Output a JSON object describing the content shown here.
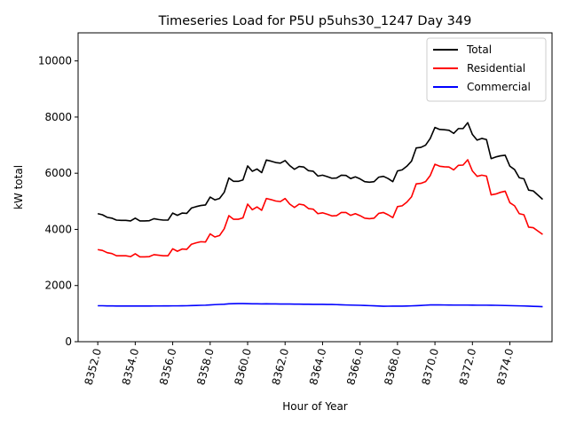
{
  "chart_data": {
    "type": "line",
    "title": "Timeseries Load for P5U p5uhs30_1247  Day 349",
    "xlabel": "Hour of Year",
    "ylabel": "kW total",
    "xlim": [
      8350.95,
      8376.25
    ],
    "ylim": [
      0,
      11000
    ],
    "xticks": [
      8352,
      8354,
      8356,
      8358,
      8360,
      8362,
      8364,
      8366,
      8368,
      8370,
      8372,
      8374
    ],
    "xtick_labels": [
      "8352.0",
      "8354.0",
      "8356.0",
      "8358.0",
      "8360.0",
      "8362.0",
      "8364.0",
      "8366.0",
      "8368.0",
      "8370.0",
      "8372.0",
      "8374.0"
    ],
    "yticks": [
      0,
      2000,
      4000,
      6000,
      8000,
      10000
    ],
    "ytick_labels": [
      "0",
      "2000",
      "4000",
      "6000",
      "8000",
      "10000"
    ],
    "legend_position": "top-right",
    "x_start": 8352,
    "x_step": 0.25,
    "series": [
      {
        "name": "Total",
        "color": "#000000",
        "values": [
          4560,
          4520,
          4430,
          4400,
          4330,
          4320,
          4320,
          4300,
          4400,
          4300,
          4300,
          4310,
          4380,
          4350,
          4330,
          4330,
          4580,
          4500,
          4580,
          4570,
          4760,
          4810,
          4850,
          4870,
          5150,
          5050,
          5100,
          5320,
          5830,
          5710,
          5710,
          5760,
          6260,
          6070,
          6150,
          6020,
          6470,
          6430,
          6380,
          6360,
          6450,
          6270,
          6140,
          6240,
          6220,
          6090,
          6070,
          5900,
          5930,
          5880,
          5820,
          5830,
          5930,
          5920,
          5810,
          5870,
          5800,
          5700,
          5680,
          5700,
          5860,
          5890,
          5810,
          5700,
          6080,
          6120,
          6250,
          6430,
          6900,
          6920,
          7000,
          7240,
          7630,
          7560,
          7550,
          7530,
          7420,
          7590,
          7590,
          7800,
          7380,
          7180,
          7240,
          7200,
          6520,
          6580,
          6620,
          6640,
          6250,
          6130,
          5840,
          5800,
          5400,
          5370,
          5220,
          5070
        ]
      },
      {
        "name": "Residential",
        "color": "#ff0000",
        "values": [
          3280,
          3250,
          3170,
          3140,
          3060,
          3060,
          3060,
          3030,
          3130,
          3020,
          3020,
          3030,
          3100,
          3080,
          3060,
          3060,
          3310,
          3220,
          3300,
          3290,
          3470,
          3520,
          3560,
          3550,
          3840,
          3730,
          3780,
          4020,
          4490,
          4360,
          4360,
          4410,
          4900,
          4700,
          4800,
          4680,
          5100,
          5060,
          5010,
          4990,
          5100,
          4900,
          4780,
          4900,
          4870,
          4740,
          4720,
          4560,
          4590,
          4540,
          4480,
          4490,
          4600,
          4600,
          4500,
          4560,
          4490,
          4400,
          4380,
          4400,
          4570,
          4600,
          4520,
          4420,
          4810,
          4840,
          4970,
          5160,
          5620,
          5640,
          5700,
          5920,
          6320,
          6250,
          6230,
          6220,
          6120,
          6280,
          6290,
          6480,
          6080,
          5890,
          5930,
          5900,
          5230,
          5260,
          5320,
          5360,
          4950,
          4840,
          4560,
          4520,
          4080,
          4060,
          3940,
          3820
        ]
      },
      {
        "name": "Commercial",
        "color": "#0000ff",
        "values": [
          1280,
          1280,
          1275,
          1275,
          1270,
          1270,
          1270,
          1270,
          1270,
          1270,
          1270,
          1270,
          1272,
          1272,
          1274,
          1274,
          1276,
          1276,
          1278,
          1280,
          1286,
          1290,
          1296,
          1300,
          1310,
          1320,
          1328,
          1334,
          1350,
          1354,
          1356,
          1356,
          1352,
          1350,
          1348,
          1346,
          1348,
          1346,
          1344,
          1342,
          1340,
          1340,
          1338,
          1336,
          1334,
          1332,
          1330,
          1330,
          1330,
          1326,
          1324,
          1320,
          1314,
          1308,
          1304,
          1300,
          1296,
          1290,
          1284,
          1278,
          1270,
          1262,
          1264,
          1266,
          1266,
          1266,
          1270,
          1276,
          1282,
          1290,
          1300,
          1310,
          1310,
          1310,
          1308,
          1306,
          1304,
          1304,
          1304,
          1304,
          1302,
          1300,
          1300,
          1300,
          1298,
          1296,
          1292,
          1288,
          1284,
          1280,
          1276,
          1272,
          1266,
          1260,
          1254,
          1248
        ]
      }
    ]
  }
}
